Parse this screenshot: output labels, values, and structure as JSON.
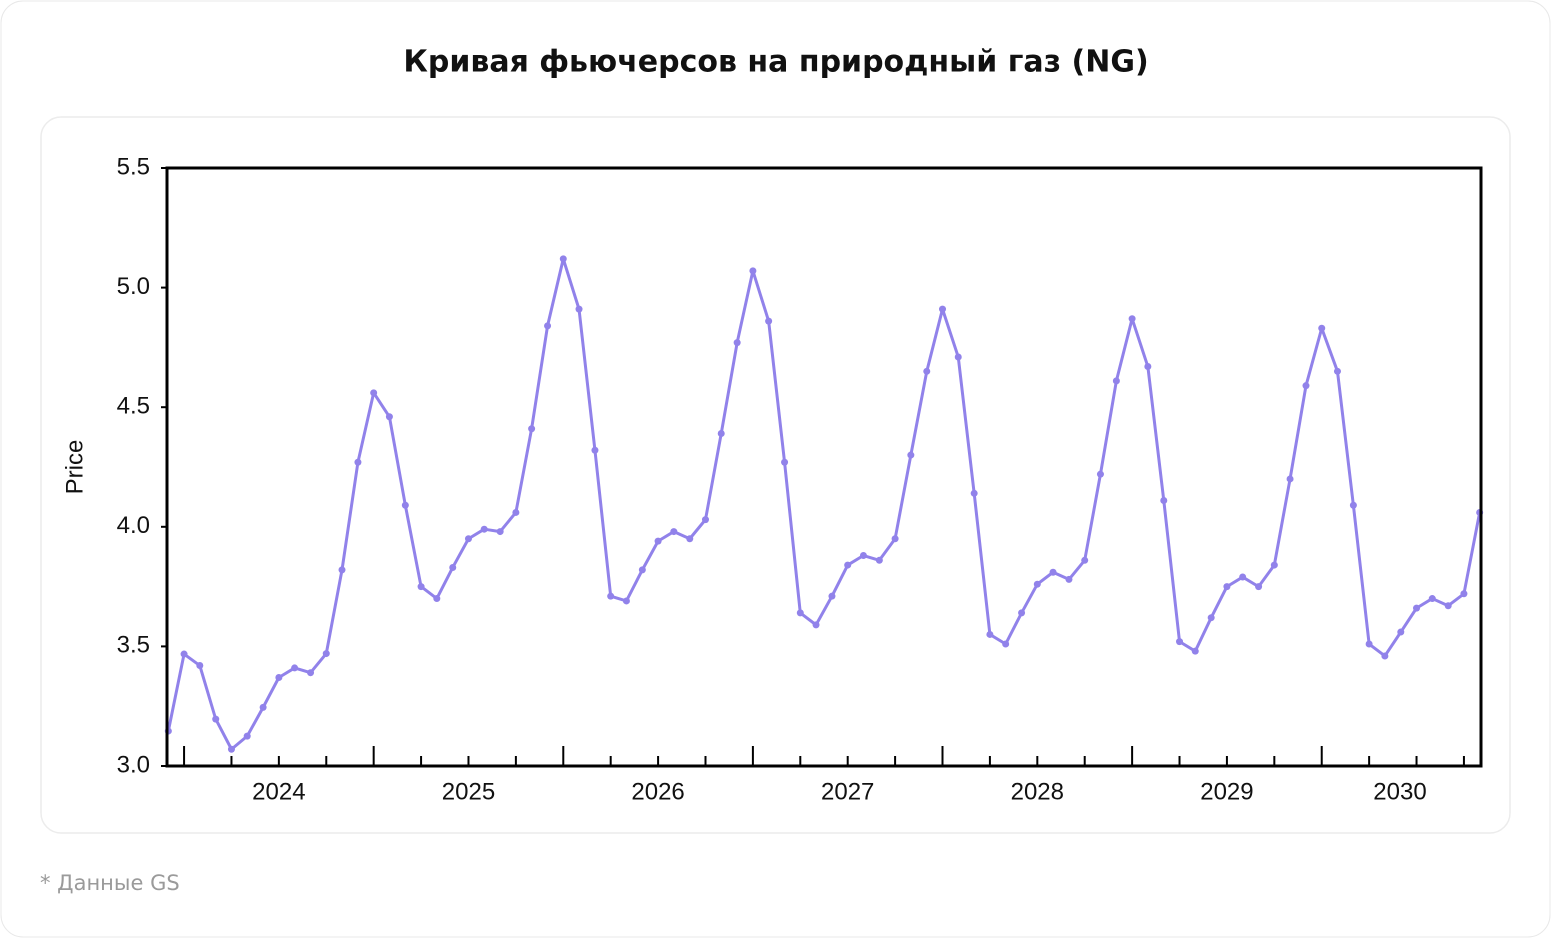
{
  "chart_data": {
    "type": "line",
    "title": "Кривая фьючерсов на природный газ (NG)",
    "y_label": "Price",
    "x": [
      2023.417,
      2023.5,
      2023.583,
      2023.667,
      2023.75,
      2023.833,
      2023.917,
      2024,
      2024.083,
      2024.167,
      2024.25,
      2024.333,
      2024.417,
      2024.5,
      2024.583,
      2024.667,
      2024.75,
      2024.833,
      2024.917,
      2025,
      2025.083,
      2025.167,
      2025.25,
      2025.333,
      2025.417,
      2025.5,
      2025.583,
      2025.667,
      2025.75,
      2025.833,
      2025.917,
      2026,
      2026.083,
      2026.167,
      2026.25,
      2026.333,
      2026.417,
      2026.5,
      2026.583,
      2026.667,
      2026.75,
      2026.833,
      2026.917,
      2027,
      2027.083,
      2027.167,
      2027.25,
      2027.333,
      2027.417,
      2027.5,
      2027.583,
      2027.667,
      2027.75,
      2027.833,
      2027.917,
      2028,
      2028.083,
      2028.167,
      2028.25,
      2028.333,
      2028.417,
      2028.5,
      2028.583,
      2028.667,
      2028.75,
      2028.833,
      2028.917,
      2029,
      2029.083,
      2029.167,
      2029.25,
      2029.333,
      2029.417,
      2029.5,
      2029.583,
      2029.667,
      2029.75,
      2029.833,
      2029.917,
      2030,
      2030.083,
      2030.167,
      2030.25,
      2030.333
    ],
    "series": [
      {
        "color": "#9182ea",
        "values": [
          3.146,
          3.468,
          3.42,
          3.196,
          3.07,
          3.125,
          3.245,
          3.37,
          3.41,
          3.39,
          3.47,
          3.82,
          4.27,
          4.56,
          4.46,
          4.09,
          3.75,
          3.7,
          3.83,
          3.95,
          3.99,
          3.98,
          4.06,
          4.41,
          4.84,
          5.12,
          4.91,
          4.32,
          3.71,
          3.69,
          3.82,
          3.94,
          3.98,
          3.95,
          4.03,
          4.39,
          4.77,
          5.07,
          4.86,
          4.27,
          3.64,
          3.59,
          3.71,
          3.84,
          3.88,
          3.86,
          3.95,
          4.3,
          4.65,
          4.91,
          4.71,
          4.14,
          3.55,
          3.51,
          3.64,
          3.76,
          3.81,
          3.78,
          3.86,
          4.22,
          4.61,
          4.87,
          4.67,
          4.11,
          3.52,
          3.48,
          3.62,
          3.75,
          3.79,
          3.75,
          3.84,
          4.2,
          4.59,
          4.83,
          4.65,
          4.09,
          3.51,
          3.46,
          3.56,
          3.66,
          3.7,
          3.67,
          3.72,
          4.06
        ]
      }
    ],
    "xlim": [
      2023.41,
      2030.34
    ],
    "xticks": [
      2024,
      2025,
      2026,
      2027,
      2028,
      2029,
      2030
    ],
    "xminorticks": [
      2023.5,
      2023.75,
      2024.25,
      2024.5,
      2024.75,
      2025.25,
      2025.5,
      2025.75,
      2026.25,
      2026.5,
      2026.75,
      2027.25,
      2027.5,
      2027.75,
      2028.25,
      2028.5,
      2028.75,
      2029.25,
      2029.5,
      2029.75,
      2030.25
    ],
    "ylim": [
      3.0,
      5.5
    ],
    "yticks": [
      {
        "value": 3,
        "label": "3.0"
      },
      3.5,
      {
        "value": 4,
        "label": "4.0"
      },
      4.5,
      {
        "value": 5,
        "label": "5.0"
      },
      5.5
    ]
  },
  "footnote": "* Данные GS"
}
